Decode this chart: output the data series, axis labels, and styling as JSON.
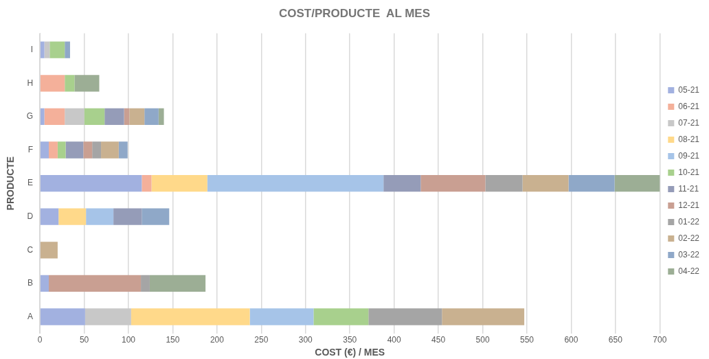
{
  "chart_data": {
    "type": "bar",
    "orientation": "horizontal",
    "stacked": true,
    "title": "COST/PRODUCTE  AL MES",
    "xlabel": "COST (€) / MES",
    "ylabel": "PRODUCTE",
    "categories": [
      "I",
      "H",
      "G",
      "F",
      "E",
      "D",
      "C",
      "B",
      "A"
    ],
    "xlim": [
      0,
      700
    ],
    "xticks": [
      0,
      50,
      100,
      150,
      200,
      250,
      300,
      350,
      400,
      450,
      500,
      550,
      600,
      650,
      700
    ],
    "grid": "x",
    "legend": "right",
    "series": [
      {
        "name": "05-21",
        "color": "#a2b1e0",
        "values": [
          5,
          null,
          5,
          10,
          115,
          21,
          null,
          10,
          51
        ]
      },
      {
        "name": "06-21",
        "color": "#f4b09a",
        "values": [
          null,
          28,
          23,
          10,
          11,
          null,
          null,
          null,
          null
        ]
      },
      {
        "name": "07-21",
        "color": "#c8c8c8",
        "values": [
          6,
          null,
          22,
          null,
          null,
          null,
          null,
          null,
          52
        ]
      },
      {
        "name": "08-21",
        "color": "#ffd98a",
        "values": [
          null,
          null,
          null,
          null,
          63,
          31,
          null,
          null,
          134
        ]
      },
      {
        "name": "09-21",
        "color": "#a6c4e8",
        "values": [
          null,
          null,
          null,
          null,
          199,
          31,
          null,
          null,
          72
        ]
      },
      {
        "name": "10-21",
        "color": "#a8d08d",
        "values": [
          17,
          11,
          23,
          9,
          null,
          null,
          null,
          null,
          62
        ]
      },
      {
        "name": "11-21",
        "color": "#959cb8",
        "values": [
          null,
          null,
          22,
          20,
          42,
          32,
          null,
          null,
          null
        ]
      },
      {
        "name": "12-21",
        "color": "#c99f92",
        "values": [
          null,
          null,
          6,
          10,
          73,
          null,
          null,
          104,
          null
        ]
      },
      {
        "name": "01-22",
        "color": "#a5a5a5",
        "values": [
          null,
          null,
          null,
          10,
          42,
          null,
          null,
          10,
          83
        ]
      },
      {
        "name": "02-22",
        "color": "#c9b190",
        "values": [
          null,
          null,
          17,
          20,
          52,
          null,
          20,
          null,
          93
        ]
      },
      {
        "name": "03-22",
        "color": "#8fa8c8",
        "values": [
          6,
          null,
          16,
          10,
          52,
          31,
          null,
          null,
          null
        ]
      },
      {
        "name": "04-22",
        "color": "#9cae95",
        "values": [
          null,
          28,
          6,
          null,
          52,
          null,
          null,
          63,
          null
        ]
      }
    ]
  }
}
